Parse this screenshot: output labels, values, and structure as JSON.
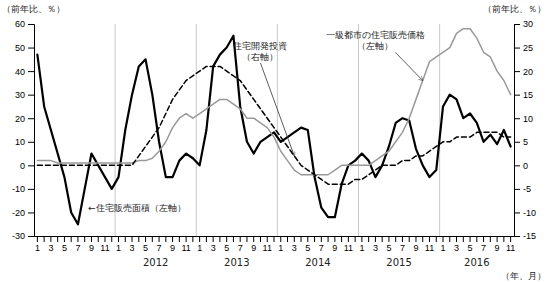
{
  "chart_data": {
    "type": "line",
    "y_label": "（前年比、％）",
    "y2_label": "（前年比、％）",
    "x_label": "（年、月）",
    "categories": [
      "1",
      null,
      "3",
      null,
      "5",
      null,
      "7",
      null,
      "9",
      null,
      "11",
      null,
      "1",
      null,
      "3",
      null,
      "5",
      null,
      "7",
      null,
      "9",
      null,
      "11",
      null,
      "1",
      null,
      "3",
      null,
      "5",
      null,
      "7",
      null,
      "9",
      null,
      "11",
      null,
      "1",
      null,
      "3",
      null,
      "5",
      null,
      "7",
      null,
      "9",
      null,
      "11",
      null,
      "1",
      null,
      "3",
      null,
      "5",
      null,
      "7",
      null,
      "9",
      null,
      "11",
      null,
      "1",
      null,
      "3",
      null,
      "5",
      null,
      "7",
      null,
      "9",
      null,
      "11"
    ],
    "year_labels": [
      "2012",
      "2013",
      "2014",
      "2015",
      "2016"
    ],
    "ylim": [
      -30,
      60
    ],
    "yticks": [
      -30,
      -20,
      -10,
      0,
      10,
      20,
      30,
      40,
      50,
      60
    ],
    "y2lim": [
      -15,
      30
    ],
    "y2ticks": [
      -15,
      -10,
      -5,
      0,
      5,
      10,
      15,
      20,
      25,
      30
    ],
    "grid": false,
    "annotations": [
      "住宅開発投資\n（右軸）",
      "一級都市の住宅販売価格\n（左軸）",
      "←住宅販売面積（左軸）"
    ],
    "series": [
      {
        "color": "#000000",
        "line_style": "solid",
        "values": [
          47,
          25,
          15,
          5,
          -5,
          -20,
          -25,
          -10,
          5,
          0,
          -5,
          -10,
          -5,
          15,
          30,
          42,
          45,
          30,
          10,
          -5,
          -5,
          2,
          5,
          3,
          0,
          15,
          42,
          47,
          50,
          55,
          25,
          10,
          5,
          10,
          12,
          14,
          10,
          12,
          14,
          16,
          15,
          -5,
          -18,
          -22,
          -22,
          -8,
          0,
          2,
          5,
          2,
          -5,
          0,
          8,
          18,
          20,
          19,
          7,
          0,
          -5,
          -2,
          25,
          30,
          28,
          20,
          22,
          18,
          10,
          13,
          9,
          15,
          8
        ]
      },
      {
        "color": "#999999",
        "line_style": "solid",
        "values": [
          2,
          2,
          2,
          1,
          1,
          1,
          1,
          1,
          1,
          1,
          1,
          1,
          1,
          1,
          1,
          2,
          2,
          3,
          6,
          10,
          16,
          20,
          22,
          20,
          22,
          24,
          26,
          28,
          28,
          26,
          24,
          20,
          20,
          18,
          16,
          12,
          6,
          2,
          -2,
          -4,
          -4,
          -4,
          -4,
          -4,
          -2,
          0,
          0,
          0,
          0,
          0,
          2,
          4,
          6,
          10,
          14,
          20,
          28,
          36,
          44,
          46,
          48,
          50,
          56,
          58,
          58,
          54,
          48,
          46,
          40,
          36,
          30
        ]
      },
      {
        "color": "#000000",
        "line_style": "dashed",
        "axis": "y2",
        "values": [
          0,
          0,
          0,
          0,
          0,
          0,
          0,
          0,
          0,
          0,
          0,
          0,
          0,
          0,
          0,
          2,
          4,
          6,
          8,
          11,
          14,
          16,
          18,
          19,
          20,
          21,
          21,
          21,
          20,
          19,
          18,
          16,
          14,
          12,
          10,
          8,
          6,
          4,
          2,
          0,
          -1,
          -2,
          -3,
          -4,
          -4,
          -4,
          -4,
          -3,
          -3,
          -2,
          -1,
          0,
          0,
          0,
          1,
          1,
          2,
          2,
          3,
          4,
          5,
          5,
          6,
          6,
          6,
          7,
          7,
          7,
          7,
          6,
          6
        ]
      }
    ]
  }
}
